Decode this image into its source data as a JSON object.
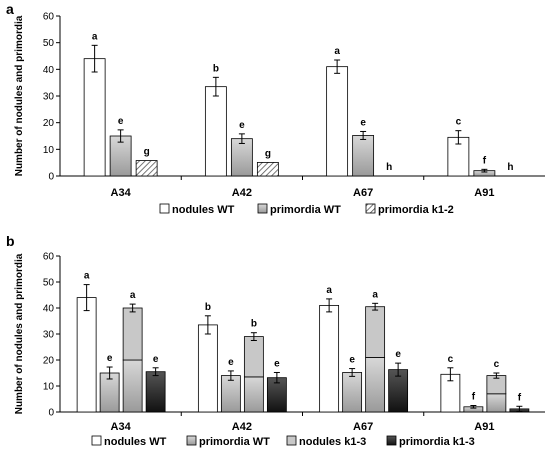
{
  "chart_data": [
    {
      "panel_label": "a",
      "type": "bar",
      "ylabel": "Number of nodules and primordia",
      "ylim": [
        0,
        60
      ],
      "yticks": [
        "0",
        "10",
        "20",
        "30",
        "40",
        "50",
        "60"
      ],
      "categories": [
        "A34",
        "A42",
        "A67",
        "A91"
      ],
      "series": [
        {
          "name": "nodules WT",
          "values": [
            44,
            33.5,
            41,
            14.5
          ],
          "errors": [
            5,
            3.5,
            2.5,
            2.5
          ],
          "letters": [
            "a",
            "b",
            "a",
            "c"
          ],
          "color": "#ffffff"
        },
        {
          "name": "primordia WT",
          "values": [
            15,
            14,
            15.2,
            2
          ],
          "errors": [
            2.3,
            1.8,
            1.5,
            0.5
          ],
          "letters": [
            "e",
            "e",
            "e",
            "f"
          ],
          "color": "#777777"
        },
        {
          "name": "primordia k1-2",
          "values": [
            5.8,
            5.1,
            0,
            0
          ],
          "errors": [
            0,
            0,
            0,
            0
          ],
          "letters": [
            "g",
            "g",
            "h",
            "h"
          ],
          "color": "#cfcfcf",
          "pattern": "hatch"
        }
      ]
    },
    {
      "panel_label": "b",
      "type": "bar",
      "ylabel": "Number of nodules and primordia",
      "ylim": [
        0,
        60
      ],
      "yticks": [
        "0",
        "10",
        "20",
        "30",
        "40",
        "50",
        "60"
      ],
      "categories": [
        "A34",
        "A42",
        "A67",
        "A91"
      ],
      "series": [
        {
          "name": "nodules WT",
          "values": [
            44,
            33.5,
            41,
            14.5
          ],
          "errors": [
            5,
            3.5,
            2.5,
            2.5
          ],
          "letters": [
            "a",
            "b",
            "a",
            "c"
          ],
          "color": "#ffffff"
        },
        {
          "name": "primordia WT",
          "values": [
            15,
            14,
            15.2,
            2
          ],
          "errors": [
            2.3,
            1.8,
            1.5,
            0.5
          ],
          "letters": [
            "e",
            "e",
            "e",
            "f"
          ],
          "color": "#777777"
        },
        {
          "name": "nodules k1-3",
          "values": [
            40,
            29,
            40.5,
            14
          ],
          "errors": [
            1.5,
            1.5,
            1.3,
            1
          ],
          "letters": [
            "a",
            "b",
            "a",
            "c"
          ],
          "color": "#c6c6c6",
          "split": [
            20,
            13.5,
            21,
            7
          ]
        },
        {
          "name": "primordia k1-3",
          "values": [
            15.5,
            13.2,
            16.3,
            1.2
          ],
          "errors": [
            1.5,
            2,
            2.5,
            1
          ],
          "letters": [
            "e",
            "e",
            "e",
            "f"
          ],
          "color": "#222222"
        }
      ]
    }
  ]
}
